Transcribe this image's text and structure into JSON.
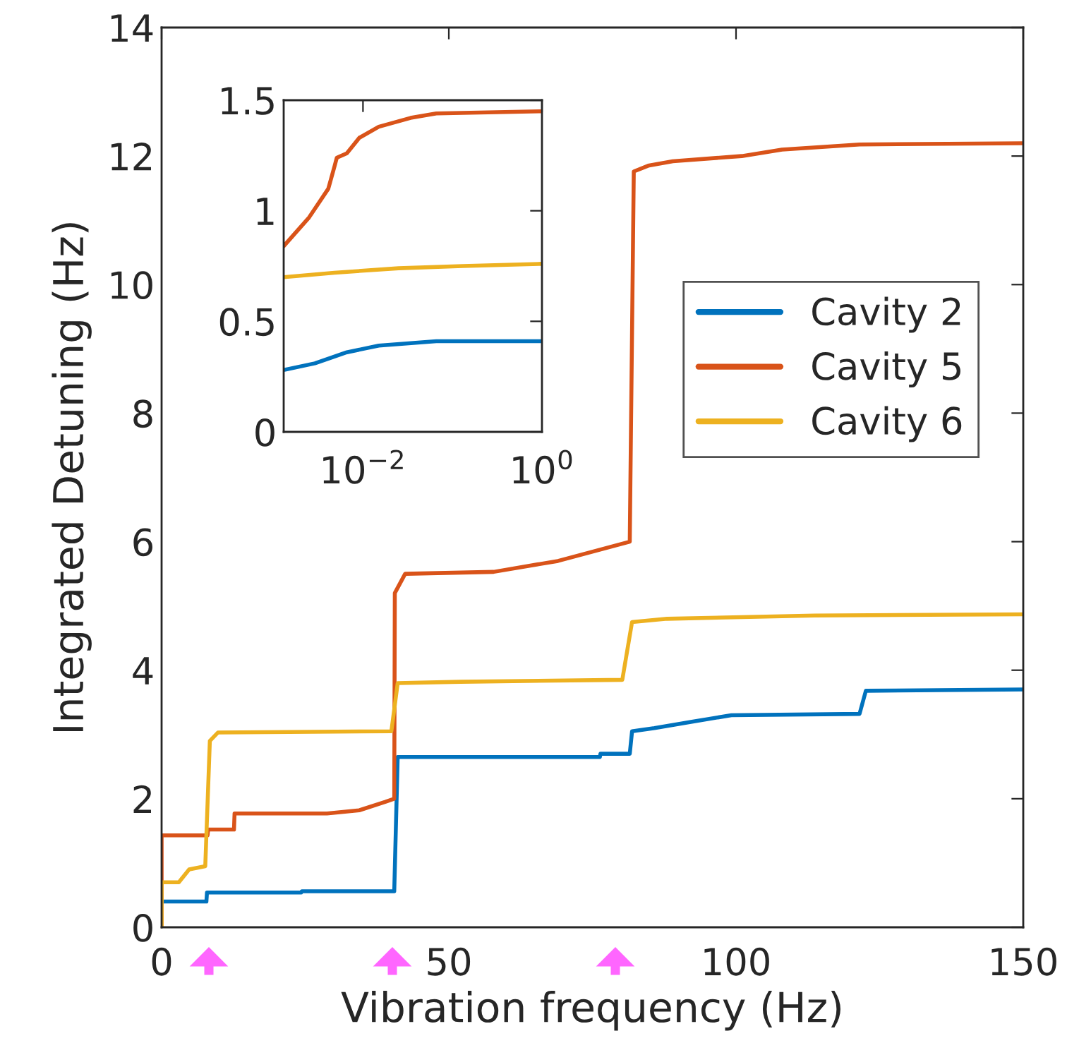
{
  "chart_data": [
    {
      "type": "line",
      "xlabel": "Vibration frequency (Hz)",
      "ylabel": "Integrated Detuning (Hz)",
      "xlim": [
        0,
        150
      ],
      "ylim": [
        0,
        14
      ],
      "xticks": [
        0,
        50,
        100,
        150
      ],
      "yticks": [
        0,
        2,
        4,
        6,
        8,
        10,
        12,
        14
      ],
      "grid": false,
      "legend": "right",
      "line_style": "solid",
      "marker": "none",
      "series": [
        {
          "name": "Cavity 2",
          "color": "#0072bd",
          "x": [
            0,
            7.8,
            7.9,
            24.3,
            24.4,
            40.5,
            41.1,
            76.3,
            76.4,
            81.5,
            81.9,
            85.8,
            92.5,
            99.2,
            121.5,
            122.6,
            150
          ],
          "values": [
            0.4,
            0.4,
            0.54,
            0.54,
            0.56,
            0.56,
            2.65,
            2.65,
            2.7,
            2.7,
            3.05,
            3.1,
            3.2,
            3.3,
            3.32,
            3.68,
            3.7
          ]
        },
        {
          "name": "Cavity 5",
          "color": "#d95319",
          "x": [
            0,
            0,
            8,
            8.1,
            12.6,
            12.7,
            28.8,
            34.4,
            38.9,
            40.5,
            40.6,
            42.4,
            57.8,
            69,
            81.5,
            82.2,
            84.7,
            89,
            101,
            108,
            121.5,
            150
          ],
          "values": [
            0,
            1.43,
            1.43,
            1.52,
            1.52,
            1.77,
            1.77,
            1.82,
            1.95,
            2.0,
            5.2,
            5.5,
            5.53,
            5.7,
            6.0,
            11.76,
            11.85,
            11.92,
            12.0,
            12.1,
            12.18,
            12.2
          ]
        },
        {
          "name": "Cavity 6",
          "color": "#edb120",
          "x": [
            0,
            0,
            3,
            4.8,
            7.6,
            8.4,
            9.8,
            40,
            41.1,
            52,
            80.2,
            81.9,
            88,
            113.7,
            150
          ],
          "values": [
            0,
            0.7,
            0.7,
            0.9,
            0.95,
            2.9,
            3.03,
            3.05,
            3.8,
            3.82,
            3.85,
            4.75,
            4.8,
            4.85,
            4.87
          ]
        }
      ]
    },
    {
      "type": "line",
      "log": "x",
      "xlim": [
        0.0013,
        1
      ],
      "ylim": [
        0,
        1.5
      ],
      "xticks": [
        {
          "value": 0.01,
          "label": "10$^{−2}$"
        },
        {
          "value": 1,
          "label": "10$^{0}$"
        }
      ],
      "yticks": [
        0,
        0.5,
        1,
        1.5
      ],
      "grid": false,
      "legend": false,
      "line_style": "solid",
      "marker": "none",
      "series": [
        {
          "color": "#0072bd",
          "x": [
            0.0013,
            0.0029,
            0.0066,
            0.015,
            0.066,
            1
          ],
          "values": [
            0.28,
            0.31,
            0.36,
            0.39,
            0.41,
            0.41
          ]
        },
        {
          "color": "#d95319",
          "x": [
            0.0013,
            0.0025,
            0.0041,
            0.0048,
            0.0051,
            0.0066,
            0.0091,
            0.015,
            0.034,
            0.066,
            1
          ],
          "values": [
            0.84,
            0.97,
            1.1,
            1.2,
            1.24,
            1.26,
            1.33,
            1.38,
            1.42,
            1.44,
            1.45
          ]
        },
        {
          "color": "#edb120",
          "x": [
            0.0013,
            0.0048,
            0.025,
            0.13,
            1
          ],
          "values": [
            0.7,
            0.72,
            0.74,
            0.75,
            0.76
          ]
        }
      ]
    }
  ]
}
